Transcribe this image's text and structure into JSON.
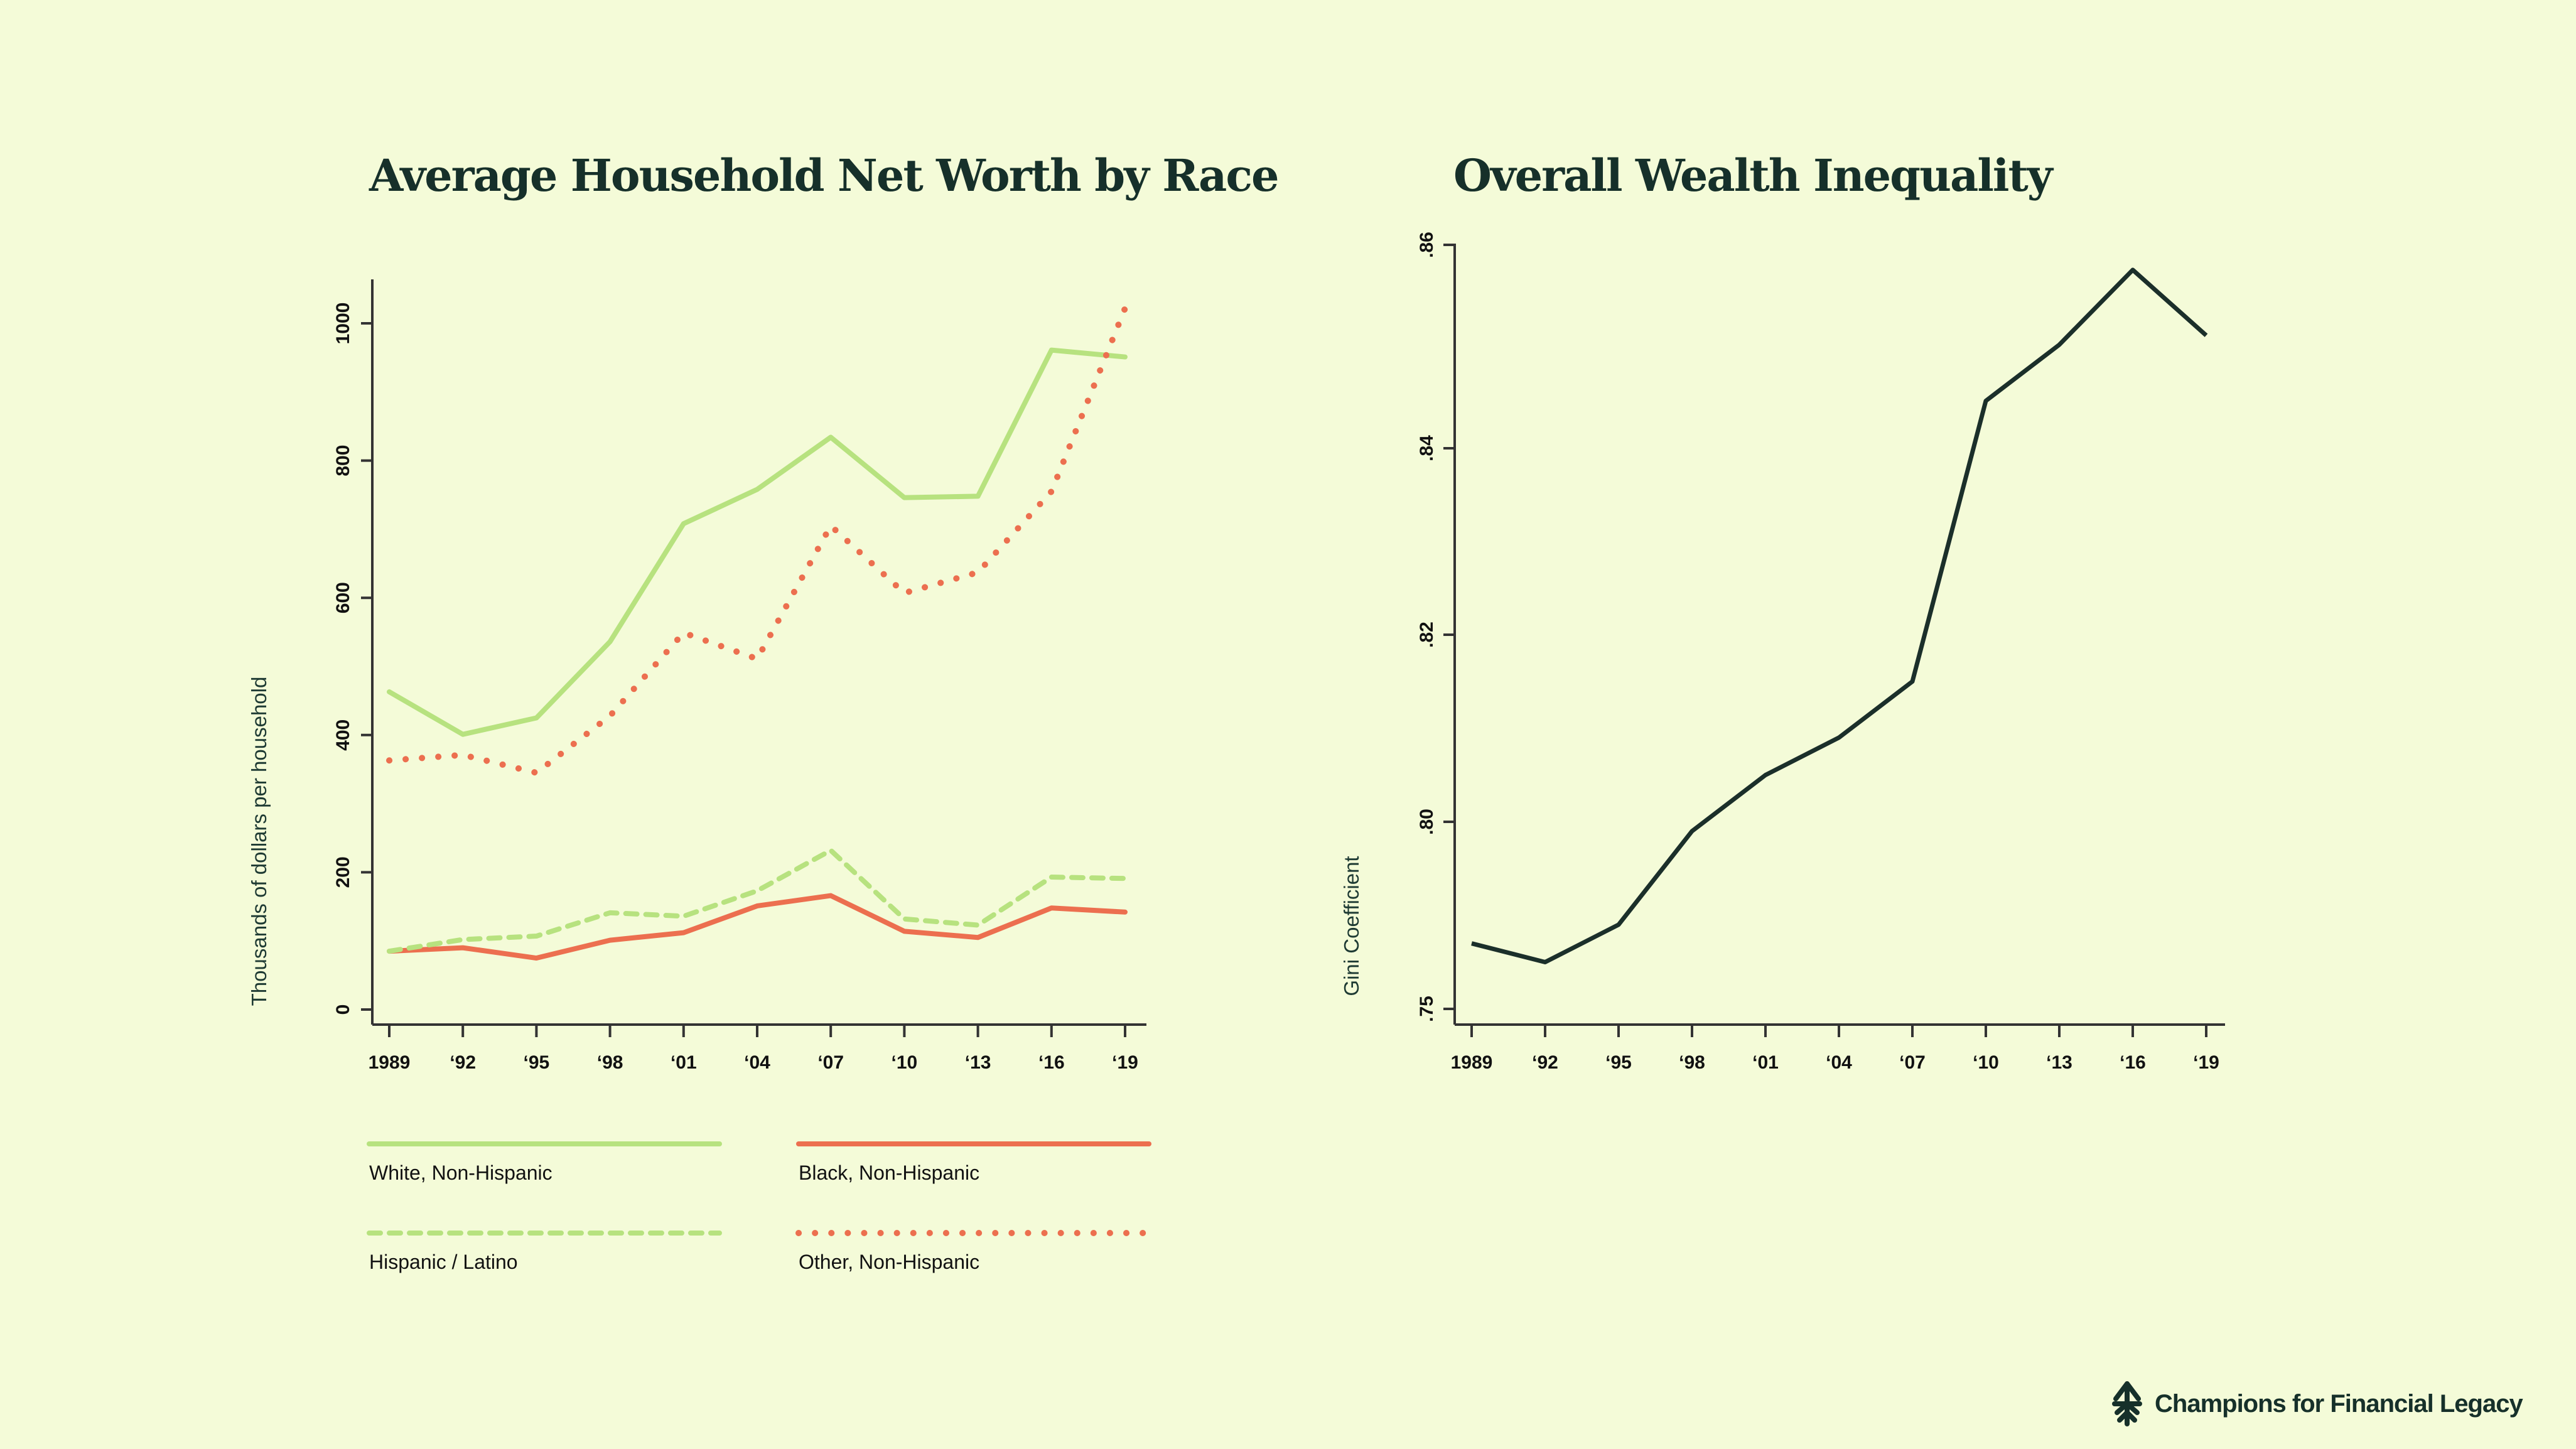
{
  "colors": {
    "background": "#f4fbd8",
    "text": "#16302a",
    "green": "#b7e27f",
    "orange": "#ec6f4f",
    "dark": "#1b2f2a"
  },
  "brand": {
    "icon": "tree-arrow-logo-icon",
    "name": "Champions for Financial Legacy"
  },
  "chart_data": [
    {
      "type": "line",
      "title": "Average Household Net Worth by Race",
      "xlabel": "",
      "ylabel": "Thousands of dollars per household",
      "x": [
        1989,
        1992,
        1995,
        1998,
        2001,
        2004,
        2007,
        2010,
        2013,
        2016,
        2019
      ],
      "x_tick_labels": [
        "1989",
        "‘92",
        "‘95",
        "‘98",
        "‘01",
        "‘04",
        "‘07",
        "‘10",
        "‘13",
        "‘16",
        "‘19"
      ],
      "y_ticks": [
        0,
        200,
        400,
        600,
        800,
        1000
      ],
      "y_tick_labels": [
        "0",
        "200",
        "400",
        "600",
        "800",
        "1000"
      ],
      "ylim": [
        -55,
        1065
      ],
      "grid": false,
      "legend_position": "bottom",
      "series": [
        {
          "name": "White, Non-Hispanic",
          "color": "#b7e27f",
          "style": "solid",
          "values": [
            463,
            401,
            425,
            536,
            708,
            758,
            834,
            746,
            748,
            961,
            951
          ]
        },
        {
          "name": "Black, Non-Hispanic",
          "color": "#ec6f4f",
          "style": "solid",
          "values": [
            85,
            90,
            75,
            101,
            112,
            151,
            166,
            114,
            105,
            148,
            142
          ]
        },
        {
          "name": "Hispanic / Latino",
          "color": "#b7e27f",
          "style": "dashed",
          "values": [
            85,
            102,
            107,
            141,
            136,
            173,
            232,
            132,
            123,
            193,
            191
          ]
        },
        {
          "name": "Other, Non-Hispanic",
          "color": "#ec6f4f",
          "style": "dotted",
          "values": [
            363,
            371,
            345,
            428,
            549,
            511,
            705,
            607,
            637,
            755,
            1022
          ]
        }
      ]
    },
    {
      "type": "line",
      "title": "Overall Wealth Inequality",
      "xlabel": "",
      "ylabel": "Gini Coefficient",
      "x": [
        1989,
        1992,
        1995,
        1998,
        2001,
        2004,
        2007,
        2010,
        2013,
        2016,
        2019
      ],
      "x_tick_labels": [
        "1989",
        "‘92",
        "‘95",
        "‘98",
        "‘01",
        "‘04",
        "‘07",
        "‘10",
        "‘13",
        "‘16",
        "‘19"
      ],
      "y_tick_labels": [
        ".75",
        ".80",
        ".82",
        ".84",
        ".86"
      ],
      "grid": false,
      "legend_position": "none",
      "series": [
        {
          "name": "Gini Coefficient",
          "color": "#1b2f2a",
          "style": "solid",
          "values": [
            0.787,
            0.785,
            0.789,
            0.799,
            0.805,
            0.809,
            0.815,
            0.845,
            0.851,
            0.859,
            0.852
          ]
        }
      ]
    }
  ]
}
